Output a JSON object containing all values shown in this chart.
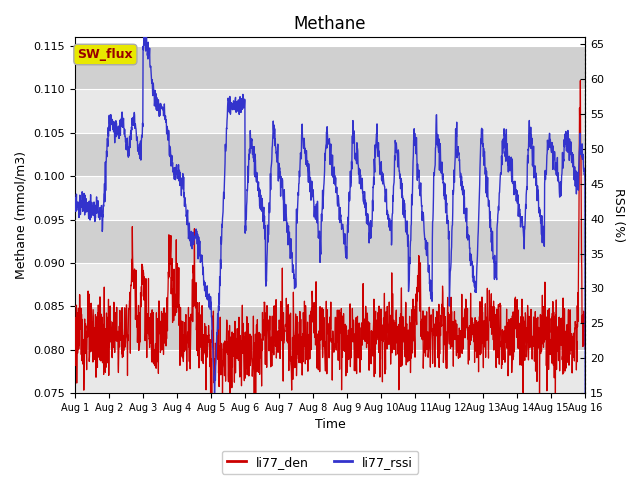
{
  "title": "Methane",
  "ylabel_left": "Methane (mmol/m3)",
  "ylabel_right": "RSSI (%)",
  "xlabel": "Time",
  "ylim_left": [
    0.075,
    0.116
  ],
  "ylim_right": [
    15,
    66
  ],
  "yticks_left": [
    0.075,
    0.08,
    0.085,
    0.09,
    0.095,
    0.1,
    0.105,
    0.11,
    0.115
  ],
  "yticks_right": [
    15,
    20,
    25,
    30,
    35,
    40,
    45,
    50,
    55,
    60,
    65
  ],
  "xtick_labels": [
    "Aug 1",
    "Aug 2",
    "Aug 3",
    "Aug 4",
    "Aug 5",
    "Aug 6",
    "Aug 7",
    "Aug 8",
    "Aug 9",
    "Aug 10",
    "Aug 11",
    "Aug 12",
    "Aug 13",
    "Aug 14",
    "Aug 15",
    "Aug 16"
  ],
  "color_red": "#cc0000",
  "color_blue": "#3333cc",
  "legend_labels": [
    "li77_den",
    "li77_rssi"
  ],
  "annotation_text": "SW_flux",
  "annotation_box_facecolor": "#e8e800",
  "annotation_box_edgecolor": "#aaaaaa",
  "annotation_text_color": "#990000",
  "plot_bg_light": "#e8e8e8",
  "plot_bg_dark": "#d0d0d0",
  "fig_bg": "#ffffff",
  "grid_color": "#ffffff"
}
